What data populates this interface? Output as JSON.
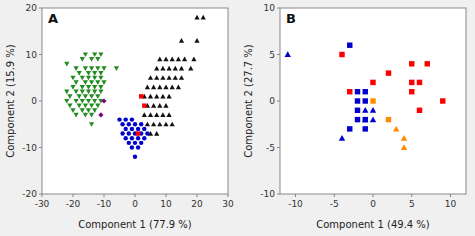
{
  "chart_data": [
    {
      "type": "scatter",
      "title": "A",
      "xlabel": "Component 1  (77.9 %)",
      "ylabel": "Component 2  (15.9 %)",
      "xlim": [
        -30,
        30
      ],
      "ylim": [
        -20,
        20
      ],
      "xticks": [
        -30,
        -20,
        -10,
        0,
        10,
        20,
        30
      ],
      "yticks": [
        -20,
        -10,
        0,
        10,
        20
      ],
      "grid": false,
      "series": [
        {
          "color": "#228B22",
          "marker": "triangle-down",
          "x": [
            -22,
            -16,
            -13,
            -11,
            -17,
            -14,
            -12,
            -19,
            -16,
            -14,
            -12,
            -10,
            -18,
            -15,
            -13,
            -11,
            -20,
            -17,
            -15,
            -13,
            -11,
            -19,
            -16,
            -14,
            -12,
            -10,
            -20,
            -17,
            -15,
            -13,
            -11,
            -22,
            -19,
            -17,
            -15,
            -13,
            -11,
            -21,
            -18,
            -16,
            -14,
            -12,
            -22,
            -19,
            -17,
            -15,
            -13,
            -11,
            -21,
            -18,
            -16,
            -14,
            -12,
            -20,
            -17,
            -15,
            -13,
            -19,
            -16,
            -14,
            -14,
            -6
          ],
          "values": [
            8,
            10,
            10,
            10,
            9,
            9,
            9,
            7,
            7,
            7,
            7,
            7,
            6,
            6,
            6,
            6,
            5,
            5,
            5,
            5,
            5,
            4,
            4,
            4,
            4,
            4,
            3,
            3,
            3,
            3,
            3,
            2,
            2,
            2,
            2,
            2,
            2,
            1,
            1,
            1,
            1,
            1,
            0,
            0,
            0,
            0,
            0,
            0,
            -1,
            -1,
            -1,
            -1,
            -1,
            -2,
            -2,
            -2,
            -2,
            -3,
            -3,
            -3,
            -5,
            7
          ]
        },
        {
          "color": "#111111",
          "marker": "triangle-up",
          "x": [
            20,
            22,
            15,
            20,
            8,
            10,
            12,
            14,
            16,
            19,
            7,
            9,
            11,
            13,
            15,
            18,
            5,
            7,
            9,
            11,
            13,
            15,
            4,
            6,
            8,
            10,
            12,
            14,
            3,
            5,
            7,
            9,
            11,
            4,
            6,
            8,
            10,
            3,
            5,
            7,
            9,
            11,
            4,
            6,
            8,
            10,
            12,
            5,
            7
          ],
          "values": [
            18,
            18,
            13,
            13,
            9,
            9,
            9,
            9,
            9,
            9,
            7,
            7,
            7,
            7,
            7,
            7,
            5,
            5,
            5,
            5,
            5,
            5,
            3,
            3,
            3,
            3,
            3,
            3,
            1,
            1,
            1,
            1,
            1,
            -1,
            -1,
            -1,
            -1,
            -3,
            -3,
            -3,
            -3,
            -3,
            -5,
            -5,
            -5,
            -5,
            -5,
            -7,
            -7
          ]
        },
        {
          "color": "#0000CD",
          "marker": "circle",
          "x": [
            -4,
            -2,
            0,
            2,
            -3,
            -1,
            1,
            3,
            -4,
            -2,
            0,
            2,
            4,
            -3,
            -1,
            1,
            3,
            -2,
            0,
            2,
            -1,
            1,
            0,
            -5,
            -3,
            -1
          ],
          "values": [
            -5,
            -5,
            -5,
            -5,
            -6,
            -6,
            -6,
            -6,
            -7,
            -7,
            -7,
            -7,
            -7,
            -8,
            -8,
            -8,
            -8,
            -9,
            -9,
            -9,
            -10,
            -10,
            -12,
            -4,
            -4,
            -4
          ]
        },
        {
          "color": "red",
          "marker": "square",
          "x": [
            2,
            3,
            1
          ],
          "values": [
            1,
            -1,
            -7
          ]
        },
        {
          "color": "#800080",
          "marker": "diamond",
          "x": [
            -10,
            -11
          ],
          "values": [
            0,
            -3
          ]
        }
      ]
    },
    {
      "type": "scatter",
      "title": "B",
      "xlabel": "Component 1  (49.4 %)",
      "ylabel": "Component 2  (27.7 %)",
      "xlim": [
        -12,
        12
      ],
      "ylim": [
        -10,
        10
      ],
      "xticks": [
        -10,
        -5,
        0,
        5,
        10
      ],
      "yticks": [
        -10,
        -5,
        0,
        5,
        10
      ],
      "grid": false,
      "series": [
        {
          "color": "red",
          "marker": "square",
          "x": [
            -4,
            -3,
            0,
            2,
            5,
            7,
            5,
            6,
            5,
            9,
            6
          ],
          "values": [
            5,
            1,
            2,
            3,
            4,
            4,
            2,
            2,
            1,
            0,
            -1
          ]
        },
        {
          "color": "#0000CD",
          "marker": "square",
          "x": [
            -3,
            -2,
            -1,
            -2,
            -1,
            -2,
            -2,
            -1,
            -3,
            -1
          ],
          "values": [
            6,
            1,
            1,
            0,
            0,
            -1,
            -2,
            -2,
            -3,
            -3
          ]
        },
        {
          "color": "#0000CD",
          "marker": "triangle-up",
          "x": [
            -11,
            -4,
            -1,
            0,
            -1,
            0
          ],
          "values": [
            5,
            -4,
            -1,
            -1,
            -2,
            -2
          ]
        },
        {
          "color": "#FF8C00",
          "marker": "square",
          "x": [
            0,
            2
          ],
          "values": [
            0,
            -2
          ]
        },
        {
          "color": "#FF8C00",
          "marker": "triangle-up",
          "x": [
            3,
            4,
            4
          ],
          "values": [
            -3,
            -4,
            -5
          ]
        }
      ]
    }
  ]
}
